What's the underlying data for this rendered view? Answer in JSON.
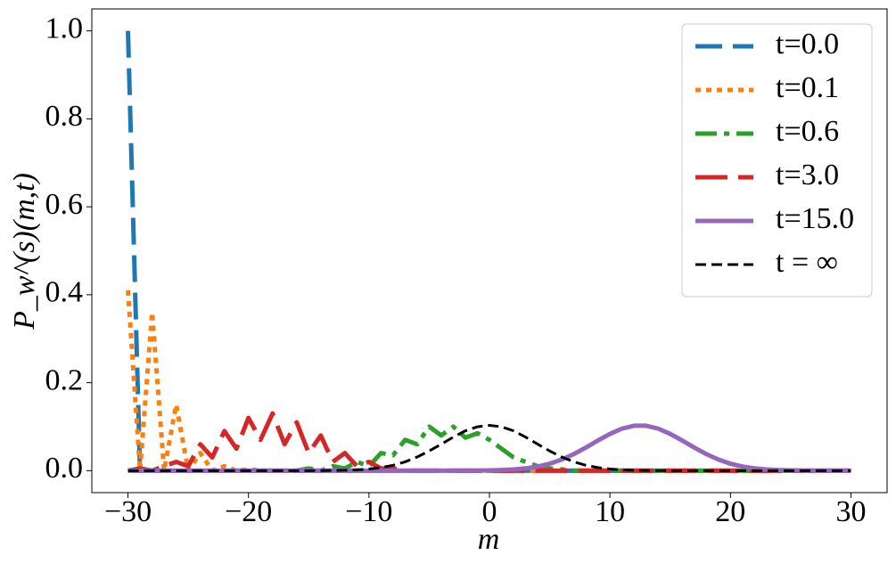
{
  "chart_data": {
    "type": "line",
    "x_label": "m",
    "y_label": "P_w^(s)(m,t)",
    "x": [
      -30,
      -29,
      -28,
      -27,
      -26,
      -25,
      -24,
      -23,
      -22,
      -21,
      -20,
      -19,
      -18,
      -17,
      -16,
      -15,
      -14,
      -13,
      -12,
      -11,
      -10,
      -9,
      -8,
      -7,
      -6,
      -5,
      -4,
      -3,
      -2,
      -1,
      0,
      1,
      2,
      3,
      4,
      5,
      6,
      7,
      8,
      9,
      10,
      11,
      12,
      13,
      14,
      15,
      16,
      17,
      18,
      19,
      20,
      21,
      22,
      23,
      24,
      25,
      26,
      27,
      28,
      29,
      30
    ],
    "series": [
      {
        "name": "t=0.0",
        "color": "#1f77b4",
        "linestyle": "dashed",
        "values": [
          1,
          0,
          0,
          0,
          0,
          0,
          0,
          0,
          0,
          0,
          0,
          0,
          0,
          0,
          0,
          0,
          0,
          0,
          0,
          0,
          0,
          0,
          0,
          0,
          0,
          0,
          0,
          0,
          0,
          0,
          0,
          0,
          0,
          0,
          0,
          0,
          0,
          0,
          0,
          0,
          0,
          0,
          0,
          0,
          0,
          0,
          0,
          0,
          0,
          0,
          0,
          0,
          0,
          0,
          0,
          0,
          0,
          0,
          0,
          0,
          0
        ]
      },
      {
        "name": "t=0.1",
        "color": "#ff7f0e",
        "linestyle": "dotted",
        "values": [
          0.41,
          0,
          0.36,
          0,
          0.15,
          0,
          0.04,
          0,
          0.01,
          0,
          0.003,
          0,
          0,
          0,
          0,
          0,
          0,
          0,
          0,
          0,
          0,
          0,
          0,
          0,
          0,
          0,
          0,
          0,
          0,
          0,
          0,
          0,
          0,
          0,
          0,
          0,
          0,
          0,
          0,
          0,
          0,
          0,
          0,
          0,
          0,
          0,
          0,
          0,
          0,
          0,
          0,
          0,
          0,
          0,
          0,
          0,
          0,
          0,
          0,
          0,
          0
        ]
      },
      {
        "name": "t=0.6",
        "color": "#2ca02c",
        "linestyle": "dashdot",
        "values": [
          0,
          0,
          0,
          0,
          0,
          0,
          0,
          0,
          0,
          0,
          0,
          0,
          0,
          0,
          0,
          0.005,
          0,
          0.01,
          0.005,
          0.02,
          0.01,
          0.04,
          0.035,
          0.07,
          0.06,
          0.1,
          0.08,
          0.1,
          0.075,
          0.085,
          0.07,
          0.05,
          0.03,
          0.02,
          0.01,
          0.005,
          0.003,
          0,
          0,
          0,
          0,
          0,
          0,
          0,
          0,
          0,
          0,
          0,
          0,
          0,
          0,
          0,
          0,
          0,
          0,
          0,
          0,
          0,
          0,
          0,
          0
        ]
      },
      {
        "name": "t=3.0",
        "color": "#d62728",
        "linestyle": "longdash",
        "values": [
          0,
          0.005,
          0,
          0.01,
          0.02,
          0.01,
          0.06,
          0.03,
          0.09,
          0.05,
          0.12,
          0.07,
          0.13,
          0.06,
          0.11,
          0.04,
          0.08,
          0.02,
          0.04,
          0.01,
          0.02,
          0.005,
          0.005,
          0,
          0,
          0,
          0,
          0,
          0,
          0,
          0,
          0,
          0,
          0,
          0,
          0,
          0,
          0,
          0,
          0,
          0,
          0,
          0,
          0,
          0,
          0,
          0,
          0,
          0,
          0,
          0,
          0,
          0,
          0,
          0,
          0,
          0,
          0,
          0,
          0,
          0
        ]
      },
      {
        "name": "t=15.0",
        "color": "#9467bd",
        "linestyle": "solid",
        "values": [
          0,
          0,
          0,
          0,
          0,
          0,
          0,
          0,
          0,
          0,
          0,
          0,
          0,
          0,
          0,
          0,
          0,
          0,
          0,
          0,
          0,
          0,
          0,
          0,
          0,
          0,
          0,
          0,
          0.0001,
          0.0002,
          0.0006,
          0.0013,
          0.0026,
          0.0051,
          0.0093,
          0.0158,
          0.0252,
          0.0376,
          0.0524,
          0.0685,
          0.0836,
          0.0956,
          0.1021,
          0.1021,
          0.0956,
          0.0836,
          0.0685,
          0.0524,
          0.0376,
          0.0252,
          0.0158,
          0.0093,
          0.0051,
          0.0026,
          0.0013,
          0.0006,
          0.0002,
          0.0001,
          0,
          0,
          0
        ]
      },
      {
        "name": "t = ∞",
        "color": "#000000",
        "linestyle": "shortdash",
        "values": [
          0,
          0,
          0,
          0,
          0,
          0,
          0,
          0,
          0,
          0,
          0,
          0,
          0,
          0,
          0,
          0,
          0.0001,
          0.0003,
          0.0008,
          0.0018,
          0.0036,
          0.0069,
          0.0122,
          0.02,
          0.0311,
          0.0447,
          0.0602,
          0.0763,
          0.0905,
          0.0997,
          0.103,
          0.0997,
          0.0905,
          0.0763,
          0.0602,
          0.0447,
          0.0311,
          0.02,
          0.0122,
          0.0069,
          0.0036,
          0.0018,
          0.0008,
          0.0003,
          0.0001,
          0,
          0,
          0,
          0,
          0,
          0,
          0,
          0,
          0,
          0,
          0,
          0,
          0,
          0,
          0,
          0
        ]
      }
    ],
    "xlim": [
      -33,
      33
    ],
    "ylim": [
      -0.05,
      1.05
    ],
    "xticks": [
      {
        "value": -30,
        "label": "−30"
      },
      {
        "value": -20,
        "label": "−20"
      },
      {
        "value": -10,
        "label": "−10"
      },
      0,
      10,
      20,
      30
    ],
    "yticks": [
      {
        "value": 0,
        "label": "0.0"
      },
      {
        "value": 0.2,
        "label": "0.2"
      },
      {
        "value": 0.4,
        "label": "0.4"
      },
      {
        "value": 0.6,
        "label": "0.6"
      },
      {
        "value": 0.8,
        "label": "0.8"
      },
      {
        "value": 1,
        "label": "1.0"
      }
    ],
    "legend": "upper right",
    "grid": false
  }
}
